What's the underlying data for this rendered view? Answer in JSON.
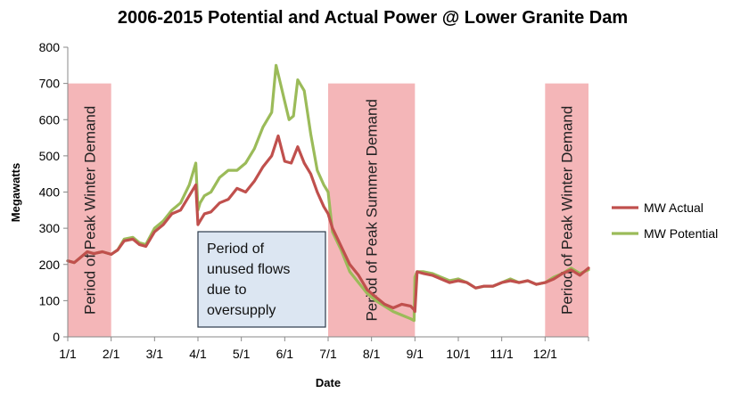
{
  "chart_data": {
    "type": "line",
    "title": "2006-2015 Potential and Actual Power @ Lower Granite Dam",
    "xlabel": "Date",
    "ylabel": "Megawatts",
    "ylim": [
      0,
      800
    ],
    "yticks": [
      0,
      100,
      200,
      300,
      400,
      500,
      600,
      700,
      800
    ],
    "xlim": [
      0,
      12
    ],
    "xticks": [
      {
        "label": "1/1",
        "month": 0
      },
      {
        "label": "2/1",
        "month": 1
      },
      {
        "label": "3/1",
        "month": 2
      },
      {
        "label": "4/1",
        "month": 3
      },
      {
        "label": "5/1",
        "month": 4
      },
      {
        "label": "6/1",
        "month": 5
      },
      {
        "label": "7/1",
        "month": 6
      },
      {
        "label": "8/1",
        "month": 7
      },
      {
        "label": "9/1",
        "month": 8
      },
      {
        "label": "10/1",
        "month": 9
      },
      {
        "label": "11/1",
        "month": 10
      },
      {
        "label": "12/1",
        "month": 11
      }
    ],
    "grid": false,
    "legend": "right",
    "bands": [
      {
        "label": "Period of Peak Winter Demand",
        "x_start": 0,
        "x_end": 1,
        "y_top": 700
      },
      {
        "label": "Period of Peak Summer Demand",
        "x_start": 6,
        "x_end": 8,
        "y_top": 700
      },
      {
        "label": "Period of Peak Winter Demand",
        "x_start": 11,
        "x_end": 12,
        "y_top": 700
      }
    ],
    "annotation": {
      "lines": [
        "Period of",
        "unused flows",
        "due to",
        "oversupply"
      ]
    },
    "series": [
      {
        "name": "MW Actual",
        "color": "#c0504d",
        "x": [
          0,
          0.15,
          0.3,
          0.45,
          0.6,
          0.8,
          1.0,
          1.15,
          1.3,
          1.5,
          1.65,
          1.8,
          2.0,
          2.2,
          2.4,
          2.6,
          2.8,
          2.95,
          3.0,
          3.05,
          3.15,
          3.3,
          3.5,
          3.7,
          3.9,
          4.1,
          4.3,
          4.5,
          4.7,
          4.85,
          5.0,
          5.15,
          5.3,
          5.45,
          5.6,
          5.75,
          5.9,
          6.0,
          6.1,
          6.3,
          6.5,
          6.7,
          6.9,
          7.1,
          7.3,
          7.5,
          7.7,
          7.9,
          7.98,
          8.0,
          8.05,
          8.2,
          8.4,
          8.6,
          8.8,
          9.0,
          9.2,
          9.4,
          9.6,
          9.8,
          10.0,
          10.2,
          10.4,
          10.6,
          10.8,
          11.0,
          11.2,
          11.4,
          11.6,
          11.8,
          12.0
        ],
        "y": [
          210,
          205,
          220,
          235,
          230,
          235,
          228,
          240,
          265,
          270,
          255,
          250,
          290,
          310,
          340,
          350,
          390,
          420,
          310,
          320,
          340,
          345,
          370,
          380,
          410,
          400,
          430,
          470,
          500,
          555,
          485,
          480,
          525,
          480,
          450,
          400,
          360,
          340,
          300,
          250,
          200,
          170,
          130,
          110,
          90,
          80,
          90,
          85,
          75,
          70,
          180,
          175,
          170,
          160,
          150,
          155,
          150,
          135,
          140,
          140,
          150,
          155,
          150,
          155,
          145,
          150,
          160,
          175,
          185,
          170,
          190
        ]
      },
      {
        "name": "MW Potential",
        "color": "#9bbb59",
        "x": [
          0,
          0.15,
          0.3,
          0.45,
          0.6,
          0.8,
          1.0,
          1.15,
          1.3,
          1.5,
          1.65,
          1.8,
          2.0,
          2.2,
          2.4,
          2.6,
          2.8,
          2.95,
          3.0,
          3.05,
          3.15,
          3.3,
          3.5,
          3.7,
          3.9,
          4.1,
          4.3,
          4.5,
          4.7,
          4.8,
          4.9,
          5.0,
          5.1,
          5.2,
          5.3,
          5.45,
          5.6,
          5.75,
          5.9,
          6.0,
          6.1,
          6.3,
          6.5,
          6.7,
          6.9,
          7.1,
          7.3,
          7.5,
          7.7,
          7.9,
          7.98,
          8.0,
          8.05,
          8.2,
          8.4,
          8.6,
          8.8,
          9.0,
          9.2,
          9.4,
          9.6,
          9.8,
          10.0,
          10.2,
          10.4,
          10.6,
          10.8,
          11.0,
          11.2,
          11.4,
          11.6,
          11.8,
          12.0
        ],
        "y": [
          210,
          205,
          220,
          235,
          230,
          235,
          228,
          240,
          270,
          275,
          260,
          255,
          300,
          320,
          350,
          370,
          420,
          480,
          350,
          370,
          390,
          400,
          440,
          460,
          460,
          480,
          520,
          580,
          620,
          750,
          700,
          650,
          600,
          610,
          710,
          680,
          560,
          460,
          420,
          400,
          290,
          240,
          180,
          150,
          120,
          100,
          85,
          70,
          60,
          50,
          45,
          165,
          180,
          180,
          175,
          165,
          155,
          160,
          150,
          135,
          140,
          140,
          150,
          160,
          150,
          155,
          145,
          150,
          165,
          175,
          190,
          175,
          185
        ]
      }
    ]
  }
}
